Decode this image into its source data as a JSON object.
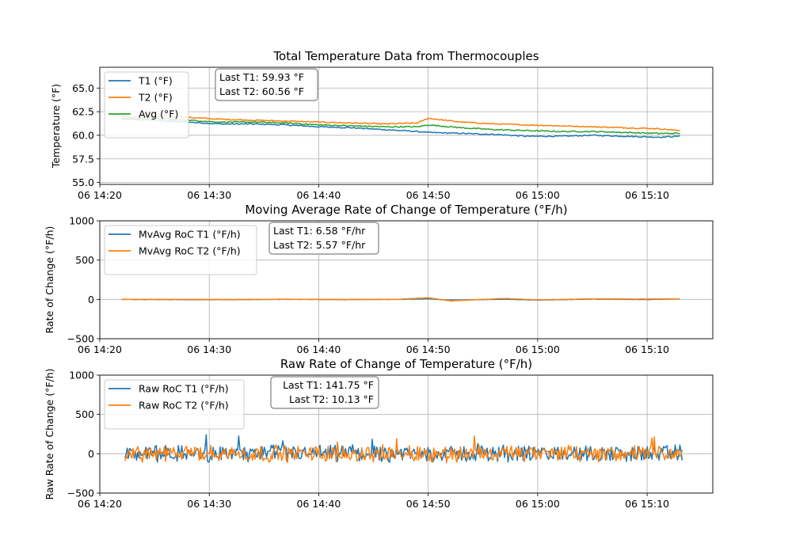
{
  "chart_data": [
    {
      "type": "line",
      "title": "Total Temperature Data from Thermocouples",
      "xlabel": "",
      "ylabel": "Temperature (°F)",
      "x_ticks": [
        "06 14:20",
        "06 14:30",
        "06 14:40",
        "06 14:50",
        "06 15:00",
        "06 15:10"
      ],
      "xlim": [
        "14:20",
        "15:16"
      ],
      "y_ticks": [
        "55.0",
        "57.5",
        "60.0",
        "62.5",
        "65.0"
      ],
      "ylim": [
        54.8,
        67.2
      ],
      "grid": true,
      "legend_position": "upper-left",
      "annotation": [
        "Last T1: 59.93 °F",
        "Last T2: 60.56 °F"
      ],
      "series": [
        {
          "name": "T1 (°F)",
          "color": "#1f77b4",
          "x": [
            "14:22",
            "14:25",
            "14:28",
            "14:31",
            "14:34",
            "14:37",
            "14:40",
            "14:43",
            "14:46",
            "14:49",
            "14:50",
            "14:53",
            "14:56",
            "14:59",
            "15:02",
            "15:05",
            "15:08",
            "15:11",
            "15:13"
          ],
          "y": [
            61.7,
            61.6,
            61.4,
            61.2,
            61.2,
            61.1,
            60.9,
            60.8,
            60.6,
            60.4,
            60.3,
            60.2,
            60.1,
            59.9,
            59.9,
            60.0,
            59.9,
            59.8,
            59.9
          ]
        },
        {
          "name": "T2 (°F)",
          "color": "#ff7f0e",
          "x": [
            "14:22",
            "14:25",
            "14:28",
            "14:31",
            "14:34",
            "14:37",
            "14:40",
            "14:43",
            "14:46",
            "14:49",
            "14:50",
            "14:53",
            "14:56",
            "14:59",
            "15:02",
            "15:05",
            "15:08",
            "15:11",
            "15:13"
          ],
          "y": [
            62.0,
            62.0,
            61.9,
            61.7,
            61.6,
            61.5,
            61.4,
            61.3,
            61.2,
            61.3,
            61.8,
            61.4,
            61.2,
            61.1,
            61.0,
            60.9,
            60.8,
            60.7,
            60.5
          ]
        },
        {
          "name": "Avg (°F)",
          "color": "#2ca02c",
          "x": [
            "14:22",
            "14:25",
            "14:28",
            "14:31",
            "14:34",
            "14:37",
            "14:40",
            "14:43",
            "14:46",
            "14:49",
            "14:50",
            "14:53",
            "14:56",
            "14:59",
            "15:02",
            "15:05",
            "15:08",
            "15:11",
            "15:13"
          ],
          "y": [
            61.8,
            61.8,
            61.6,
            61.4,
            61.4,
            61.3,
            61.1,
            61.0,
            60.9,
            60.9,
            61.1,
            60.8,
            60.6,
            60.5,
            60.4,
            60.4,
            60.3,
            60.2,
            60.2
          ]
        }
      ]
    },
    {
      "type": "line",
      "title": "Moving Average Rate of Change of Temperature (°F/h)",
      "xlabel": "",
      "ylabel": "Rate of Change (°F/h)",
      "x_ticks": [
        "06 14:20",
        "06 14:30",
        "06 14:40",
        "06 14:50",
        "06 15:00",
        "06 15:10"
      ],
      "xlim": [
        "14:20",
        "15:16"
      ],
      "y_ticks": [
        "−500",
        "0",
        "500",
        "1000"
      ],
      "ylim": [
        -500,
        1000
      ],
      "grid": true,
      "legend_position": "upper-left",
      "annotation": [
        "Last T1: 6.58 °F/hr",
        "Last T2: 5.57 °F/hr"
      ],
      "series": [
        {
          "name": "MvAvg RoC T1 (°F/h)",
          "color": "#1f77b4",
          "x": [
            "14:22",
            "14:27",
            "14:32",
            "14:37",
            "14:42",
            "14:47",
            "14:50",
            "14:52",
            "14:57",
            "15:00",
            "15:05",
            "15:10",
            "15:13"
          ],
          "y": [
            0,
            -2,
            -3,
            1,
            -2,
            0,
            8,
            -10,
            3,
            -8,
            4,
            -2,
            7
          ]
        },
        {
          "name": "MvAvg RoC T2 (°F/h)",
          "color": "#ff7f0e",
          "x": [
            "14:22",
            "14:27",
            "14:32",
            "14:37",
            "14:42",
            "14:47",
            "14:50",
            "14:52",
            "14:57",
            "15:00",
            "15:05",
            "15:10",
            "15:13"
          ],
          "y": [
            0,
            0,
            -2,
            2,
            -2,
            0,
            20,
            -18,
            12,
            -6,
            6,
            4,
            6
          ]
        }
      ]
    },
    {
      "type": "line",
      "title": "Raw Rate of Change of Temperature (°F/h)",
      "xlabel": "",
      "ylabel": "Raw Rate of Change (°F/h)",
      "x_ticks": [
        "06 14:20",
        "06 14:30",
        "06 14:40",
        "06 14:50",
        "06 15:00",
        "06 15:10"
      ],
      "xlim": [
        "14:20",
        "15:16"
      ],
      "y_ticks": [
        "−500",
        "0",
        "500",
        "1000"
      ],
      "ylim": [
        -500,
        1000
      ],
      "grid": true,
      "legend_position": "upper-left",
      "annotation": [
        "Last T1: 141.75 °F",
        "Last T2: 10.13 °F"
      ],
      "series": [
        {
          "name": "Raw RoC T1 (°F/h)",
          "color": "#1f77b4",
          "note": "noisy signal oscillating roughly between −200 and +250 around 0"
        },
        {
          "name": "Raw RoC T2 (°F/h)",
          "color": "#ff7f0e",
          "note": "noisy signal oscillating roughly between −200 and +250 around 0"
        }
      ]
    }
  ]
}
